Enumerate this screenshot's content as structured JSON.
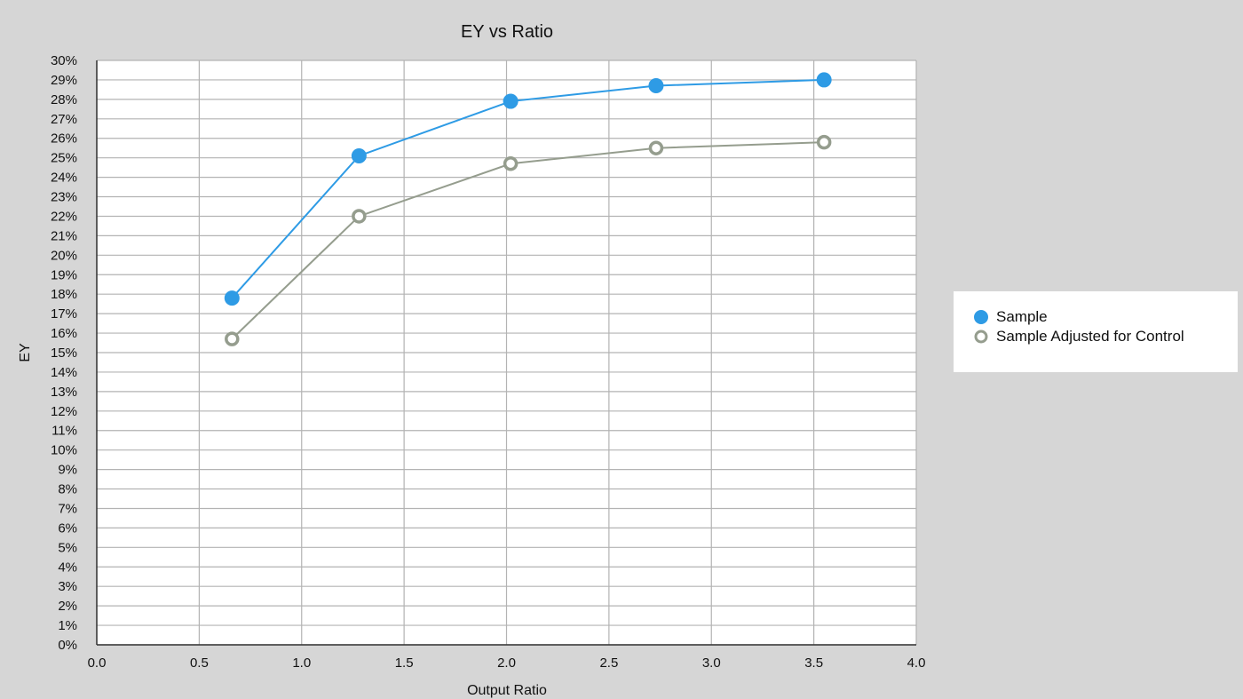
{
  "chart_data": {
    "type": "line",
    "title": "EY vs Ratio",
    "xlabel": "Output Ratio",
    "ylabel": "EY",
    "xlim": [
      0,
      4
    ],
    "ylim": [
      0,
      30
    ],
    "x_ticks": [
      "0.0",
      "0.5",
      "1.0",
      "1.5",
      "2.0",
      "2.5",
      "3.0",
      "3.5",
      "4.0"
    ],
    "y_ticks": [
      "0%",
      "1%",
      "2%",
      "3%",
      "4%",
      "5%",
      "6%",
      "7%",
      "8%",
      "9%",
      "10%",
      "11%",
      "12%",
      "13%",
      "14%",
      "15%",
      "16%",
      "17%",
      "18%",
      "19%",
      "20%",
      "21%",
      "22%",
      "23%",
      "24%",
      "25%",
      "26%",
      "27%",
      "28%",
      "29%",
      "30%"
    ],
    "grid": true,
    "legend_position": "right",
    "series": [
      {
        "name": "Sample",
        "color": "#2e9be5",
        "marker": "filled-circle",
        "points": [
          {
            "x": 0.66,
            "y": 17.8
          },
          {
            "x": 1.28,
            "y": 25.1
          },
          {
            "x": 2.02,
            "y": 27.9
          },
          {
            "x": 2.73,
            "y": 28.7
          },
          {
            "x": 3.55,
            "y": 29.0
          }
        ]
      },
      {
        "name": "Sample Adjusted for Control",
        "color": "#959d8e",
        "marker": "hollow-circle",
        "points": [
          {
            "x": 0.66,
            "y": 15.7
          },
          {
            "x": 1.28,
            "y": 22.0
          },
          {
            "x": 2.02,
            "y": 24.7
          },
          {
            "x": 2.73,
            "y": 25.5
          },
          {
            "x": 3.55,
            "y": 25.8
          }
        ]
      }
    ]
  }
}
